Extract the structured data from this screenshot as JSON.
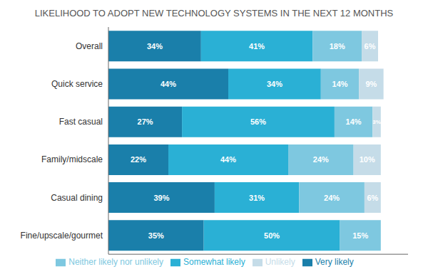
{
  "chart_data": {
    "type": "bar",
    "orientation": "horizontal",
    "stacked": true,
    "title": "LIKELIHOOD TO ADOPT NEW TECHNOLOGY SYSTEMS IN THE NEXT 12 MONTHS",
    "categories": [
      "Overall",
      "Quick service",
      "Fast casual",
      "Family/midscale",
      "Casual dining",
      "Fine/upscale/gourmet"
    ],
    "series": [
      {
        "name": "Very likely",
        "color": "#1a7faa",
        "values": [
          34,
          44,
          27,
          22,
          39,
          35
        ],
        "value_labels": [
          "34%",
          "44%",
          "27%",
          "22%",
          "39%",
          "35%"
        ]
      },
      {
        "name": "Somewhat likely",
        "color": "#2ab0d5",
        "values": [
          41,
          34,
          56,
          44,
          31,
          50
        ],
        "value_labels": [
          "41%",
          "34%",
          "56%",
          "44%",
          "31%",
          "50%"
        ]
      },
      {
        "name": "Neither likely nor unlikely",
        "color": "#7ec8e0",
        "values": [
          18,
          14,
          14,
          24,
          24,
          15
        ],
        "value_labels": [
          "18%",
          "14%",
          "14%",
          "24%",
          "24%",
          "15%"
        ]
      },
      {
        "name": "Unlikely",
        "color": "#c5dce8",
        "values": [
          6,
          9,
          3,
          10,
          6,
          0
        ],
        "value_labels": [
          "6%",
          "9%",
          "3%",
          "10%",
          "6%",
          null
        ]
      }
    ],
    "xlim": [
      0,
      110
    ],
    "grid": false,
    "legend": "bottom",
    "data_labels": true,
    "tick_labels": "y"
  }
}
